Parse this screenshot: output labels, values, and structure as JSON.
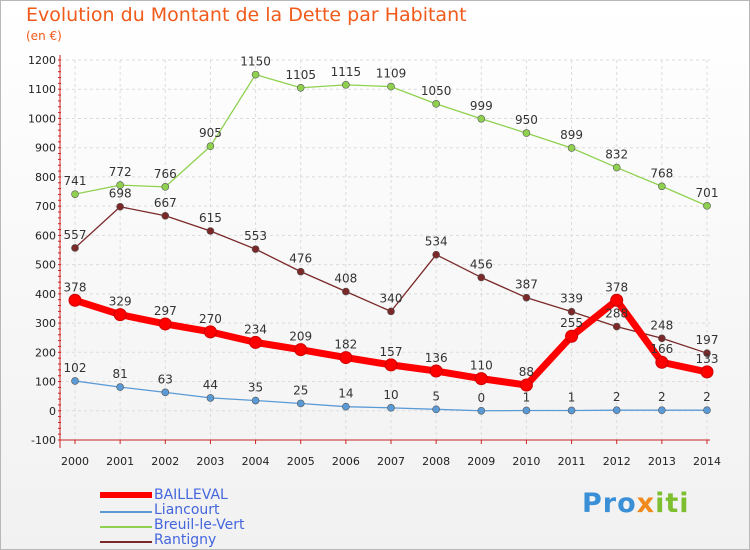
{
  "header": {
    "title": "Evolution du Montant de la Dette par Habitant",
    "subtitle": "(en €)"
  },
  "chart_data": {
    "type": "line",
    "title": "Evolution du Montant de la Dette par Habitant",
    "subtitle": "(en €)",
    "xlabel": "",
    "ylabel": "",
    "ylim": [
      -100,
      1200
    ],
    "yticks": [
      -100,
      0,
      100,
      200,
      300,
      400,
      500,
      600,
      700,
      800,
      900,
      1000,
      1100,
      1200
    ],
    "grid": true,
    "legend_position": "bottom-left",
    "categories": [
      "2000",
      "2001",
      "2002",
      "2003",
      "2004",
      "2005",
      "2006",
      "2007",
      "2008",
      "2009",
      "2010",
      "2011",
      "2012",
      "2013",
      "2014"
    ],
    "series": [
      {
        "name": "BAILLEVAL",
        "color": "#ff0000",
        "values": [
          378,
          329,
          297,
          270,
          234,
          209,
          182,
          157,
          136,
          110,
          88,
          255,
          378,
          166,
          133
        ]
      },
      {
        "name": "Liancourt",
        "color": "#5a9ad6",
        "values": [
          102,
          81,
          63,
          44,
          35,
          25,
          14,
          10,
          5,
          0,
          1,
          1,
          2,
          2,
          2
        ]
      },
      {
        "name": "Breuil-le-Vert",
        "color": "#8fd14f",
        "values": [
          741,
          772,
          766,
          905,
          1150,
          1105,
          1115,
          1109,
          1050,
          999,
          950,
          899,
          832,
          768,
          701
        ]
      },
      {
        "name": "Rantigny",
        "color": "#7a2828",
        "values": [
          557,
          698,
          667,
          615,
          553,
          476,
          408,
          340,
          534,
          456,
          387,
          339,
          288,
          248,
          197
        ]
      }
    ]
  },
  "logo": {
    "part1": "Pro",
    "part2": "x",
    "part3": "iti"
  }
}
